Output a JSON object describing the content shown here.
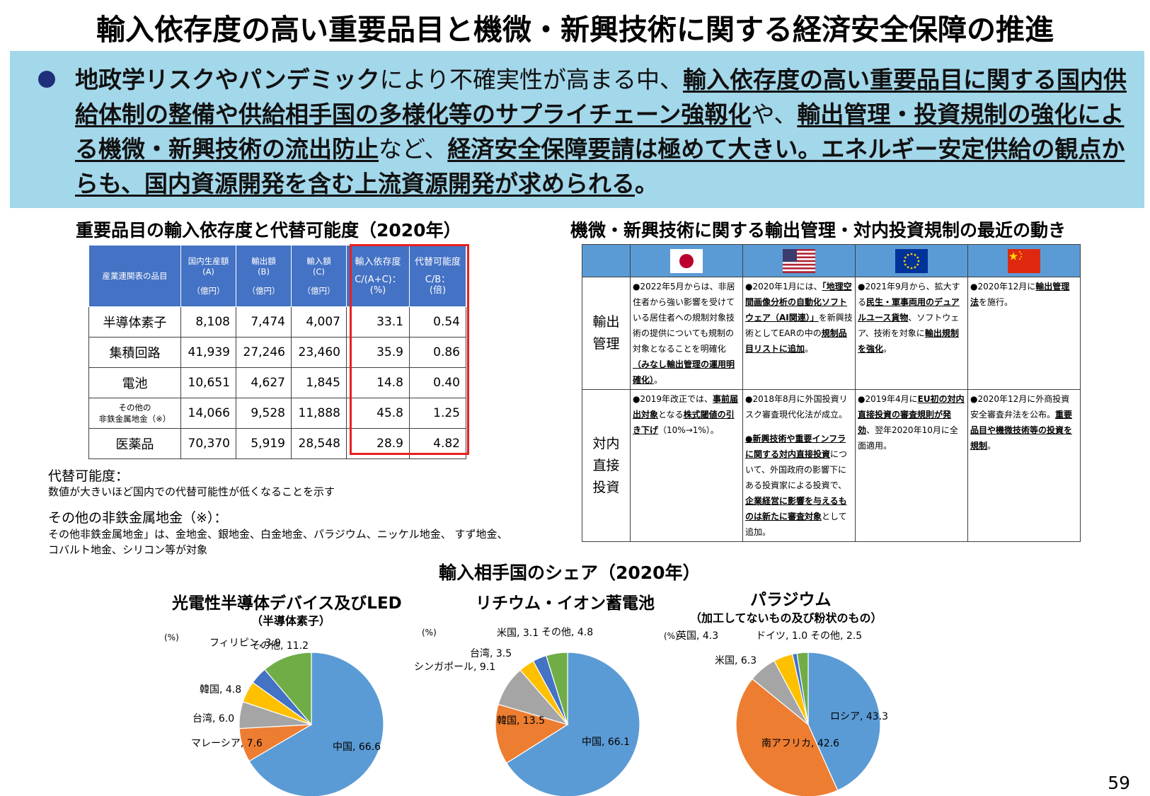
{
  "title": "輸入依存度の高い重要品目と機微・新興技術に関する経済安全保障の推進",
  "summary": {
    "p1": "地政学リスクやパンデミック",
    "p2": "により不確実性が高まる中、",
    "p3": "輸入依存度の高い重要品目に関する国内供給体制の整備や供給相手国の多様化等のサプライチェーン強靱化",
    "p4": "や、",
    "p5": "輸出管理・投資規制の強化による機微・新興技術の流出防止",
    "p6": "など、",
    "p7": "経済安全保障要請は極めて大きい。",
    "p8": "エネルギー安定供給の観点からも、国内資源開発を含む上流資源開発が求められる",
    "p9": "。"
  },
  "dependency_table": {
    "section_title": "重要品目の輸入依存度と代替可能度（2020年）",
    "headers": {
      "item": "産業連関表の品目",
      "domestic": "国内生産額",
      "domestic_sym": "(A)",
      "export": "輸出額",
      "export_sym": "(B)",
      "import": "輸入額",
      "import_sym": "(C)",
      "unit": "（億円）",
      "dependency": "輸入依存度",
      "dependency_formula": "C/(A+C)：",
      "dependency_unit": "(%)",
      "substitute": "代替可能度",
      "substitute_formula": "C/B：",
      "substitute_unit": "(倍)"
    },
    "rows": [
      {
        "item": "半導体素子",
        "a": "8,108",
        "b": "7,474",
        "c": "4,007",
        "dep": "33.1",
        "sub": "0.54"
      },
      {
        "item": "集積回路",
        "a": "41,939",
        "b": "27,246",
        "c": "23,460",
        "dep": "35.9",
        "sub": "0.86"
      },
      {
        "item": "電池",
        "a": "10,651",
        "b": "4,627",
        "c": "1,845",
        "dep": "14.8",
        "sub": "0.40"
      },
      {
        "item_line1": "その他の",
        "item_line2": "非鉄金属地金（※）",
        "a": "14,066",
        "b": "9,528",
        "c": "11,888",
        "dep": "45.8",
        "sub": "1.25"
      },
      {
        "item": "医薬品",
        "a": "70,370",
        "b": "5,919",
        "c": "28,548",
        "dep": "28.9",
        "sub": "4.82"
      }
    ],
    "note1_title": "代替可能度：",
    "note1_body": "数値が大きいほど国内での代替可能性が低くなることを示す",
    "note2_title": "その他の非鉄金属地金（※）：",
    "note2_body1": "その他非鉄金属地金」は、金地金、銀地金、白金地金、パラジウム、ニッケル地金、 すず地金、",
    "note2_body2": "コバルト地金、シリコン等が対象"
  },
  "regulation_table": {
    "section_title": "機微・新興技術に関する輸出管理・対内投資規制の最近の動き",
    "flags": [
      "japan-flag-icon",
      "usa-flag-icon",
      "eu-flag-icon",
      "china-flag-icon"
    ],
    "export_label_1": "輸出",
    "export_label_2": "管理",
    "invest_label_1": "対内",
    "invest_label_2": "直接",
    "invest_label_3": "投資",
    "jp_export_1": "●2022年5月からは、非居住者から強い影響を受けている居住者への規制対象技術の提供についても規制の対象となることを明確化",
    "jp_export_2": "（みなし輸出管理の運用明確化）",
    "jp_export_3": "。",
    "us_export_1": "●2020年1月には、",
    "us_export_2": "「地理空間画像分析の自動化ソフトウェア（AI関連）」",
    "us_export_3": "を新興技術としてEARの中の",
    "us_export_4": "規制品目リストに追加",
    "us_export_5": "。",
    "eu_export_1": "●2021年9月から、拡大する",
    "eu_export_2": "民生・軍事両用のデュアルユース貨物",
    "eu_export_3": "、ソフトウェア、技術を対象に",
    "eu_export_4": "輸出規制を強化",
    "eu_export_5": "。",
    "cn_export_1": "●2020年12月に",
    "cn_export_2": "輸出管理法",
    "cn_export_3": "を施行。",
    "jp_invest_1": "●2019年改正では、",
    "jp_invest_2": "事前届出対象",
    "jp_invest_3": "となる",
    "jp_invest_4": "株式閾値の引き下げ",
    "jp_invest_5": "（10%→1%）。",
    "us_invest_1": "●2018年8月に外国投資リスク審査現代化法が成立。",
    "us_invest_2": "●新興技術や重要インフラに関する対内直接投資",
    "us_invest_3": "について、外国政府の影響下にある投資家による投資で、",
    "us_invest_4": "企業経営に影響を与えるものは新たに審査対象",
    "us_invest_5": "として追加。",
    "eu_invest_1": "●2019年4月に",
    "eu_invest_2": "EU初の対内直接投資の審査規則が発効",
    "eu_invest_3": "、",
    "eu_invest_4": "翌年2020年10月に全面適用。",
    "cn_invest_1": "●2020年12月に外商投資安全審査弁法を公布。",
    "cn_invest_2": "重要品目や機微技術等の投資を規制",
    "cn_invest_3": "。"
  },
  "charts_section_title": "輸入相手国のシェア（2020年）",
  "chart_data": [
    {
      "type": "pie",
      "title": "光電性半導体デバイス及びLED",
      "subtitle": "（半導体素子）",
      "unit_label": "(%)",
      "slices": [
        {
          "label": "中国",
          "value": 66.6,
          "color": "#5b9bd5"
        },
        {
          "label": "マレーシア",
          "value": 7.6,
          "color": "#ed7d31"
        },
        {
          "label": "台湾",
          "value": 6.0,
          "color": "#a5a5a5"
        },
        {
          "label": "韓国",
          "value": 4.8,
          "color": "#ffc000"
        },
        {
          "label": "フィリピン",
          "value": 3.9,
          "color": "#4472c4"
        },
        {
          "label": "その他",
          "value": 11.2,
          "color": "#70ad47"
        }
      ]
    },
    {
      "type": "pie",
      "title": "リチウム・イオン蓄電池",
      "subtitle": "",
      "unit_label": "(%)",
      "slices": [
        {
          "label": "中国",
          "value": 66.1,
          "color": "#5b9bd5"
        },
        {
          "label": "韓国",
          "value": 13.5,
          "color": "#ed7d31"
        },
        {
          "label": "シンガポール",
          "value": 9.1,
          "color": "#a5a5a5"
        },
        {
          "label": "台湾",
          "value": 3.5,
          "color": "#ffc000"
        },
        {
          "label": "米国",
          "value": 3.1,
          "color": "#4472c4"
        },
        {
          "label": "その他",
          "value": 4.8,
          "color": "#70ad47"
        }
      ]
    },
    {
      "type": "pie",
      "title": "パラジウム",
      "subtitle": "（加工してないもの及び粉状のもの）",
      "unit_label": "(%)",
      "slices": [
        {
          "label": "ロシア",
          "value": 43.3,
          "color": "#5b9bd5"
        },
        {
          "label": "南アフリカ",
          "value": 42.6,
          "color": "#ed7d31"
        },
        {
          "label": "米国",
          "value": 6.3,
          "color": "#a5a5a5"
        },
        {
          "label": "英国",
          "value": 4.3,
          "color": "#ffc000"
        },
        {
          "label": "ドイツ",
          "value": 1.0,
          "color": "#4472c4"
        },
        {
          "label": "その他",
          "value": 2.5,
          "color": "#70ad47"
        }
      ]
    }
  ],
  "page_number": "59"
}
